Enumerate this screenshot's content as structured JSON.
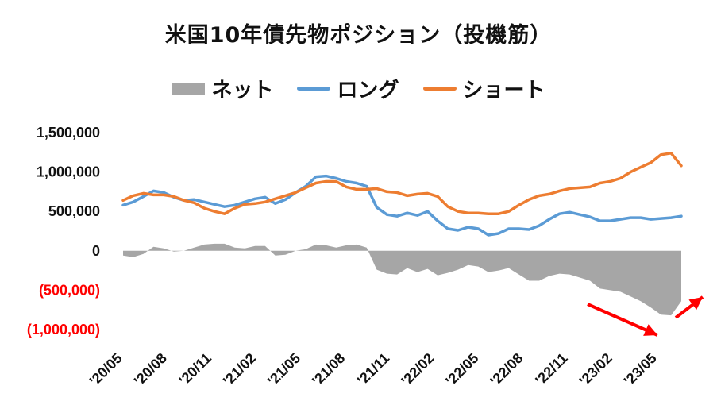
{
  "chart_data": {
    "type": "line",
    "title": "米国10年債先物ポジション（投機筋）",
    "ylim": [
      -1000000,
      1500000
    ],
    "yticks": [
      {
        "value": 1500000,
        "label": "1,500,000",
        "negative": false
      },
      {
        "value": 1000000,
        "label": "1,000,000",
        "negative": false
      },
      {
        "value": 500000,
        "label": "500,000",
        "negative": false
      },
      {
        "value": 0,
        "label": "0",
        "negative": false
      },
      {
        "value": -500000,
        "label": "(500,000)",
        "negative": true
      },
      {
        "value": -1000000,
        "label": "(1,000,000)",
        "negative": true
      }
    ],
    "x_tick_labels": [
      "'20/05",
      "'20/08",
      "'20/11",
      "'21/02",
      "'21/05",
      "'21/08",
      "'21/11",
      "'22/02",
      "'22/05",
      "'22/08",
      "'22/11",
      "'23/02",
      "'23/05"
    ],
    "series": [
      {
        "name": "ネット",
        "style": "area",
        "color": "#a6a6a6"
      },
      {
        "name": "ロング",
        "style": "line",
        "color": "#5b9bd5",
        "values": [
          580000,
          620000,
          690000,
          760000,
          740000,
          680000,
          640000,
          650000,
          620000,
          590000,
          560000,
          580000,
          620000,
          660000,
          680000,
          600000,
          650000,
          740000,
          820000,
          940000,
          950000,
          920000,
          880000,
          860000,
          820000,
          550000,
          460000,
          440000,
          480000,
          450000,
          500000,
          380000,
          280000,
          260000,
          300000,
          280000,
          200000,
          220000,
          280000,
          280000,
          270000,
          320000,
          400000,
          470000,
          490000,
          460000,
          430000,
          380000,
          380000,
          400000,
          420000,
          420000,
          400000,
          410000,
          420000,
          440000
        ]
      },
      {
        "name": "ショート",
        "style": "line",
        "color": "#ed7d31",
        "values": [
          640000,
          700000,
          730000,
          710000,
          710000,
          690000,
          640000,
          610000,
          540000,
          500000,
          470000,
          540000,
          590000,
          600000,
          620000,
          660000,
          700000,
          740000,
          800000,
          860000,
          880000,
          880000,
          810000,
          780000,
          780000,
          790000,
          750000,
          740000,
          700000,
          720000,
          730000,
          690000,
          560000,
          500000,
          480000,
          480000,
          470000,
          470000,
          500000,
          580000,
          650000,
          700000,
          720000,
          760000,
          790000,
          800000,
          810000,
          860000,
          880000,
          920000,
          1000000,
          1060000,
          1120000,
          1220000,
          1240000,
          1080000
        ]
      }
    ],
    "annotations": [
      "decline-arrow",
      "rise-arrow"
    ]
  }
}
